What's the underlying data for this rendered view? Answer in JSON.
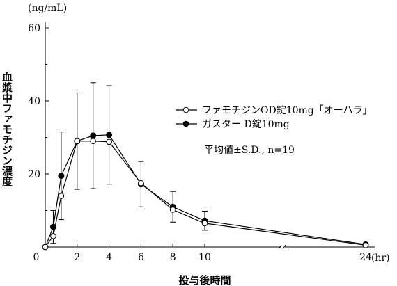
{
  "chart_data": {
    "type": "line",
    "y_unit": "(ng/mL)",
    "ylabel": "血漿中ファモチジン濃度",
    "xlabel": "投与後時間",
    "x_unit": "(hr)",
    "ylim": [
      0,
      60
    ],
    "x_ticks": [
      0,
      2,
      4,
      6,
      8,
      10,
      24
    ],
    "y_ticks": [
      20,
      40,
      60
    ],
    "x_break": true,
    "grid": false,
    "legend_position": "upper-right",
    "annotation": "平均値±S.D., n=19",
    "series": [
      {
        "name": "ファモチジンOD錠10mg「オーハラ」",
        "marker": "open-circle",
        "x": [
          0,
          0.5,
          1,
          2,
          3,
          4,
          6,
          8,
          10,
          24
        ],
        "y": [
          0,
          3,
          14,
          29,
          29,
          28.8,
          17.5,
          10.2,
          6.5,
          0.5
        ]
      },
      {
        "name": "ガスター D錠10mg",
        "marker": "filled-circle",
        "x": [
          0,
          0.5,
          1,
          2,
          3,
          4,
          6,
          8,
          10,
          24
        ],
        "y": [
          0,
          5.5,
          19.5,
          29,
          30.5,
          30.7,
          17.2,
          11,
          7.2,
          0.7
        ],
        "y_err": [
          0,
          4.5,
          12,
          13.2,
          14.5,
          13.5,
          6.2,
          4.2,
          2.6,
          0
        ]
      }
    ]
  }
}
